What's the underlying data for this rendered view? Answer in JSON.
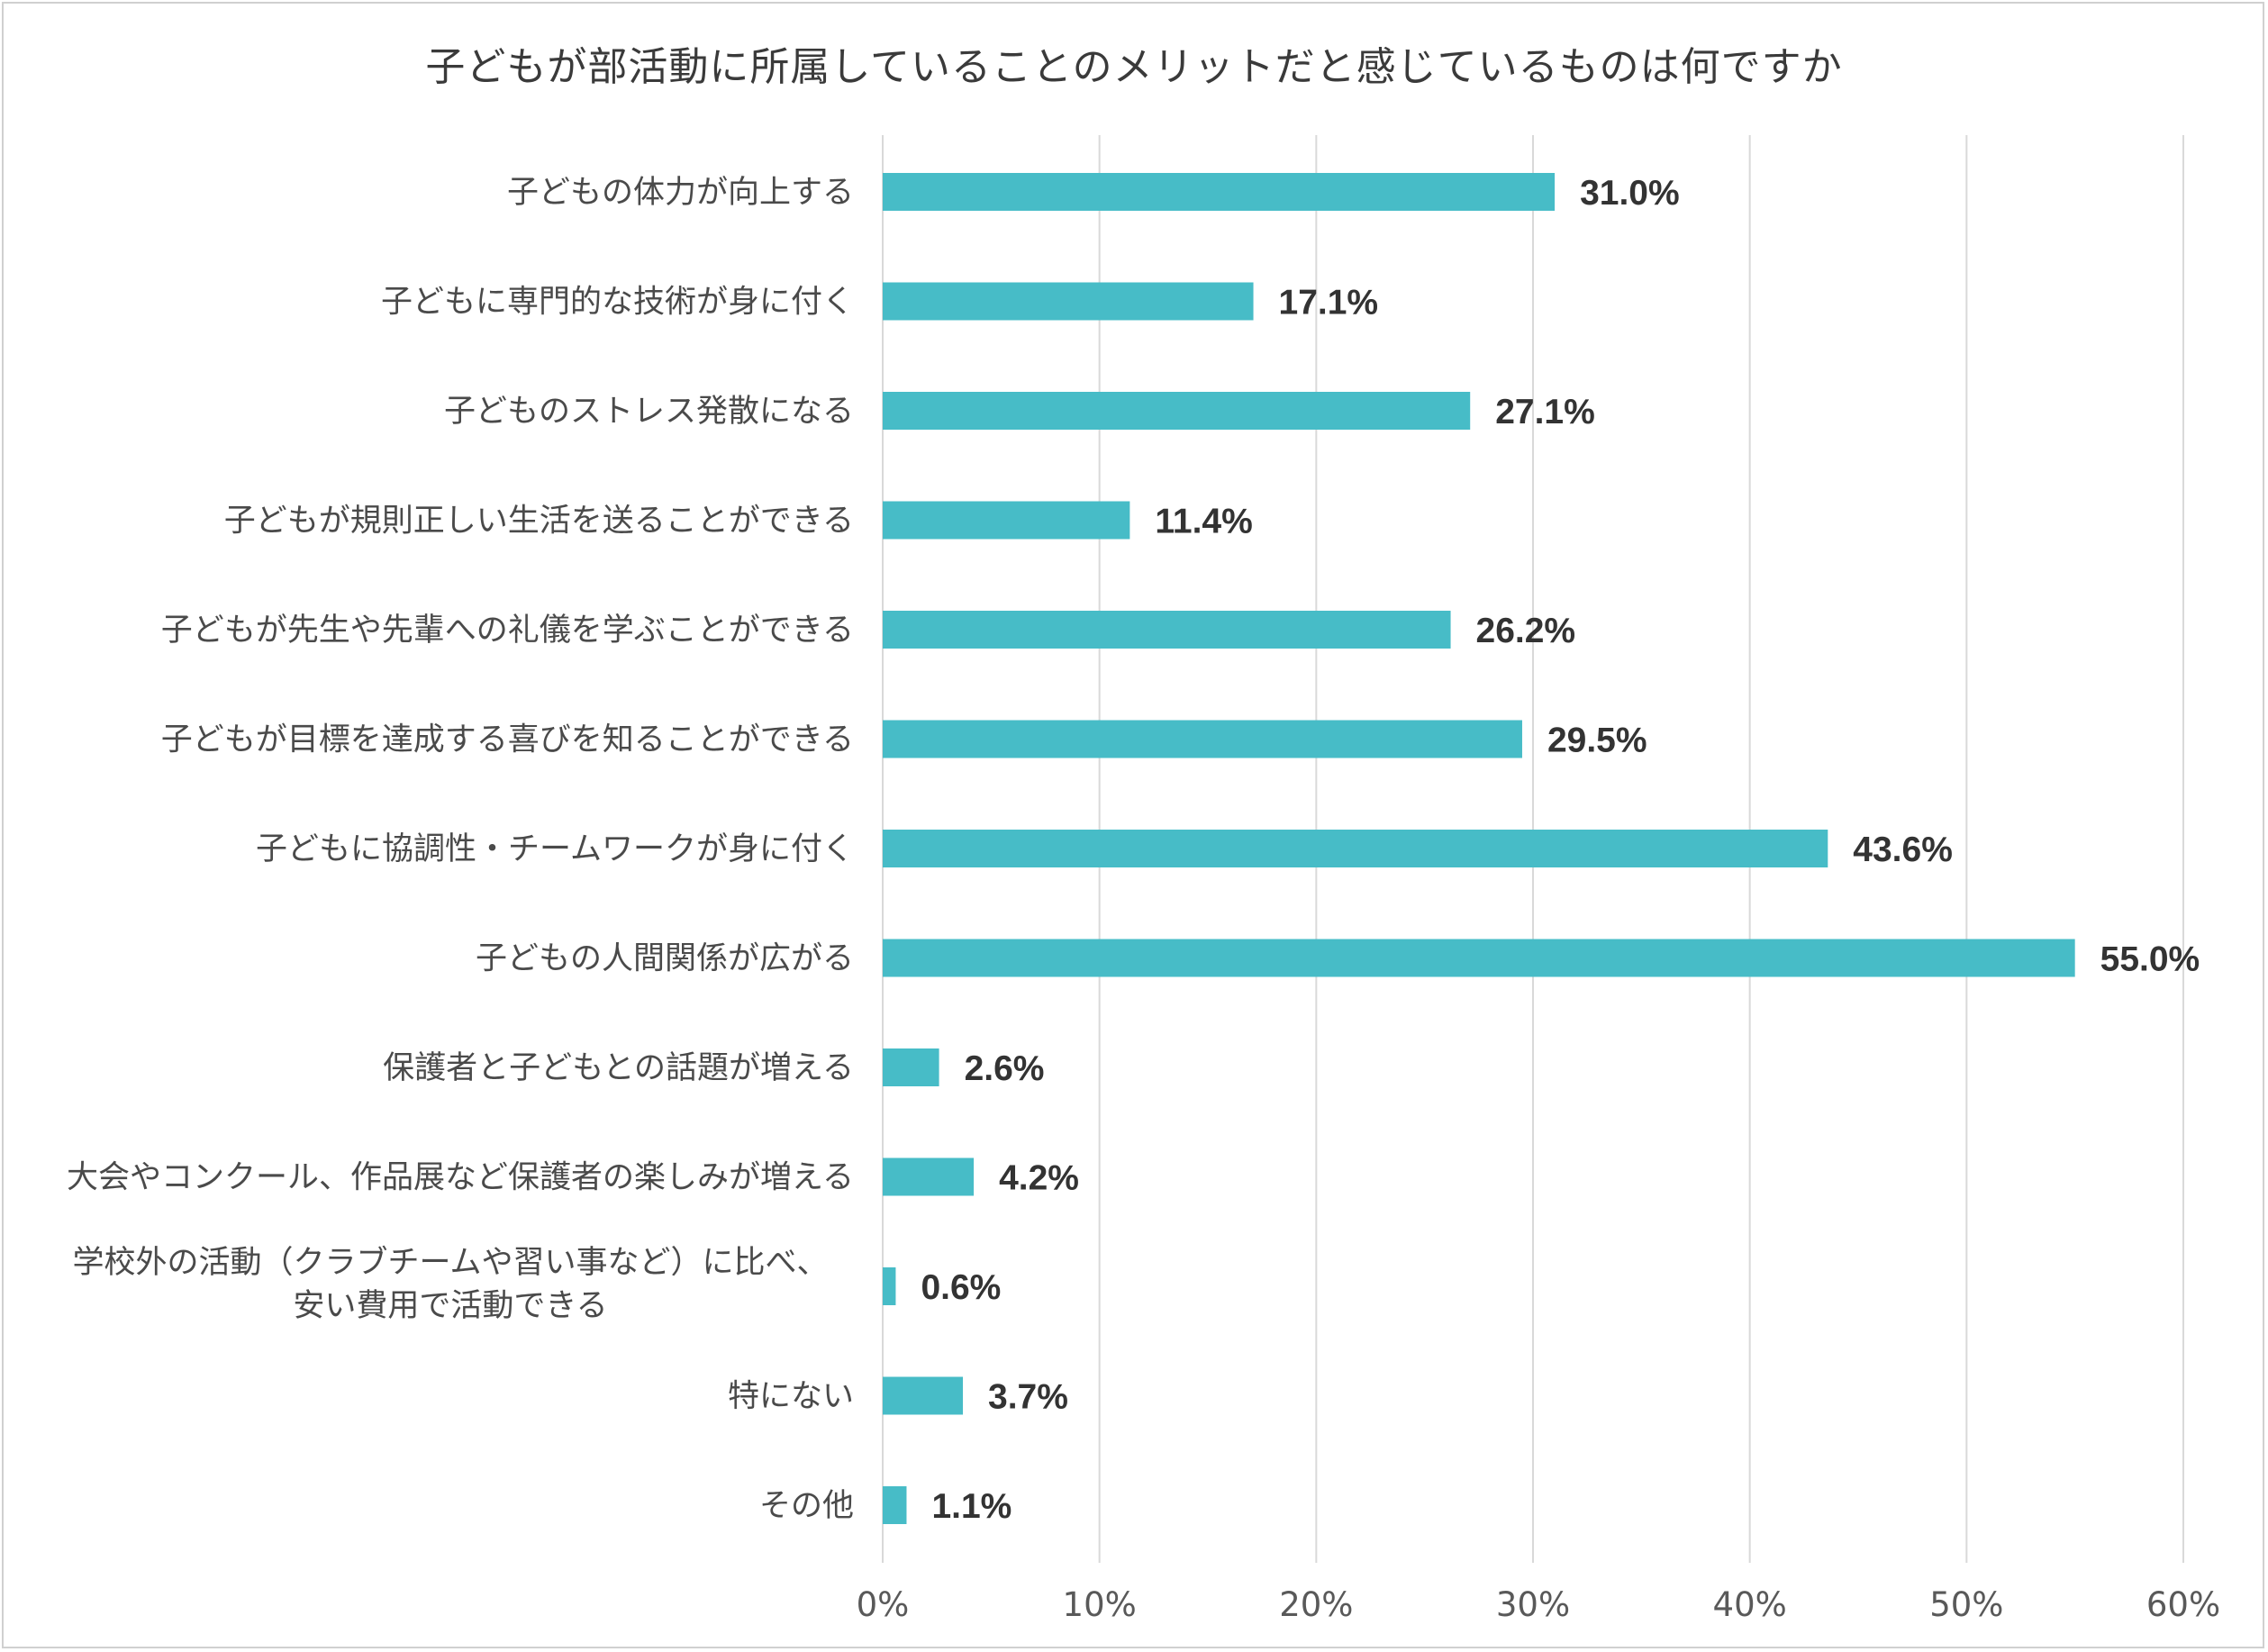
{
  "chart_data": {
    "type": "bar",
    "orientation": "horizontal",
    "title": "子どもが部活動に所属していることのメリットだと感じているものは何ですか",
    "categories": [
      [
        "子どもの体力が向上する"
      ],
      [
        "子どもに専門的な技術が身に付く"
      ],
      [
        "子どものストレス発散になる"
      ],
      [
        "子どもが規則正しい生活を送ることができる"
      ],
      [
        "子どもが先生や先輩への礼儀を学ぶことができる"
      ],
      [
        "子どもが目標を達成する喜びを知ることができる"
      ],
      [
        "子どもに協調性・チームワークが身に付く"
      ],
      [
        "子どもの人間関係が広がる"
      ],
      [
        "保護者と子どもとの話題が増える"
      ],
      [
        "大会やコンクール、作品展など保護者の楽しみが増える"
      ],
      [
        "学校外の活動（クラブチームや習い事など）に比べ、",
        "安い費用で活動できる"
      ],
      [
        "特にない"
      ],
      [
        "その他"
      ]
    ],
    "values": [
      31.0,
      17.1,
      27.1,
      11.4,
      26.2,
      29.5,
      43.6,
      55.0,
      2.6,
      4.2,
      0.6,
      3.7,
      1.1
    ],
    "value_labels": [
      "31.0%",
      "17.1%",
      "27.1%",
      "11.4%",
      "26.2%",
      "29.5%",
      "43.6%",
      "55.0%",
      "2.6%",
      "4.2%",
      "0.6%",
      "3.7%",
      "1.1%"
    ],
    "xlim": [
      0,
      60
    ],
    "xticks": [
      0,
      10,
      20,
      30,
      40,
      50,
      60
    ],
    "xtick_labels": [
      "0%",
      "10%",
      "20%",
      "30%",
      "40%",
      "50%",
      "60%"
    ],
    "xlabel": "",
    "ylabel": "",
    "grid": "vertical",
    "legend": "none",
    "bar_color": "#47bcc7",
    "grid_color": "#d9d9d9"
  }
}
